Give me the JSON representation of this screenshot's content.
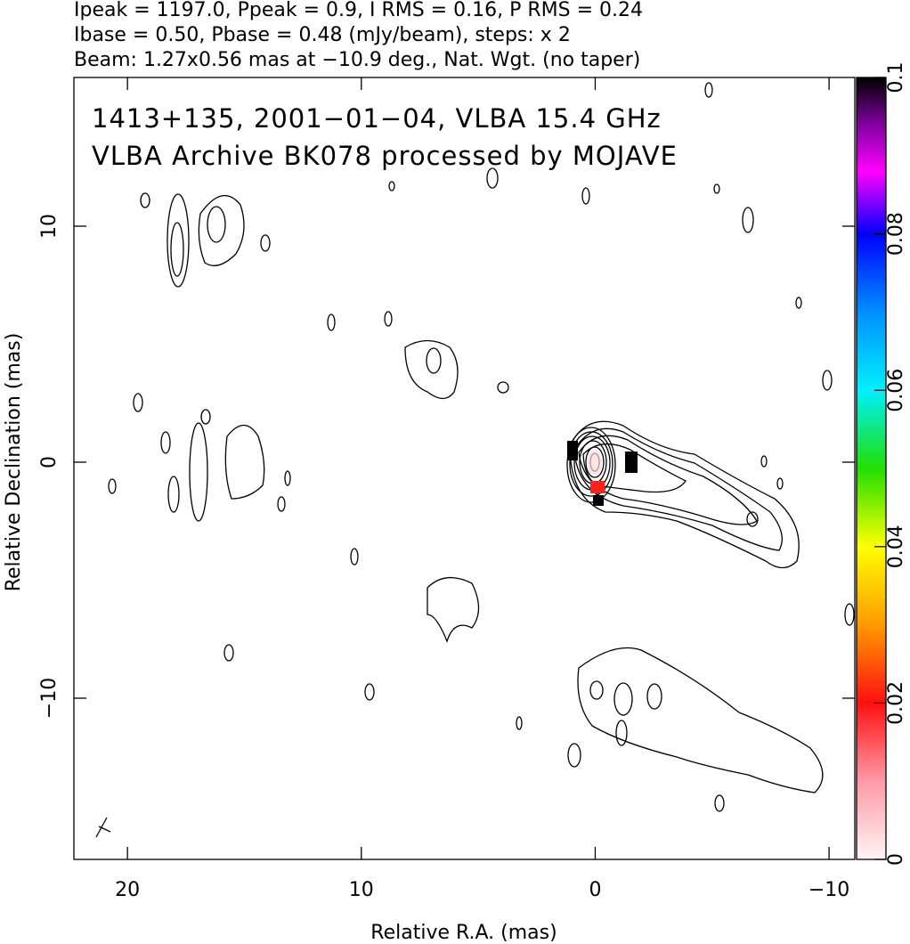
{
  "chart_data": {
    "type": "contour",
    "header": [
      "Ipeak = 1197.0, Ppeak = 0.9, I RMS = 0.16, P RMS = 0.24",
      "Ibase = 0.50, Pbase = 0.48 (mJy/beam), steps: x 2",
      "Beam: 1.27x0.56 mas at −10.9 deg., Nat. Wgt. (no taper)"
    ],
    "annotations": [
      "1413+135, 2001−01−04, VLBA 15.4 GHz",
      "VLBA Archive BK078 processed by MOJAVE"
    ],
    "x_label": "Relative R.A. (mas)",
    "y_label": "Relative Declination (mas)",
    "xlim": [
      22.29,
      -11.1
    ],
    "ylim": [
      -16.83,
      16.3
    ],
    "xticks": [
      20,
      10,
      0,
      {
        "value": -10,
        "label": "−10"
      }
    ],
    "yticks": [
      {
        "value": -10,
        "label": "−10"
      },
      0,
      10
    ],
    "colorbar": {
      "lim": [
        0,
        0.1
      ],
      "ticks": [
        0,
        0.02,
        0.04,
        0.06,
        0.08,
        0.1
      ]
    }
  }
}
